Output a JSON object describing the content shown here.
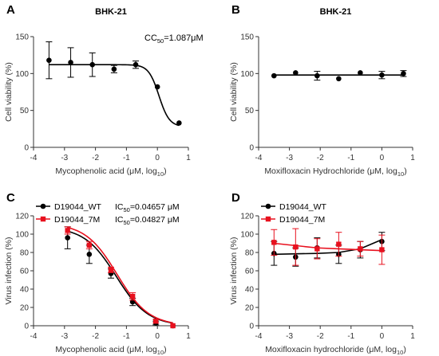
{
  "chart_data": [
    {
      "panel": "A",
      "type": "scatter",
      "title": "BHK-21",
      "xlabel": "Mycophenolic acid (μM, log",
      "xlabel_sub": "10",
      "ylabel": "Cell viability (%)",
      "xlim": [
        -4,
        1
      ],
      "ylim": [
        0,
        150
      ],
      "xticks": [
        -4,
        -3,
        -2,
        -1,
        0,
        1
      ],
      "yticks": [
        0,
        50,
        100,
        150
      ],
      "annotation": {
        "prefix": "CC",
        "sub": "50",
        "suffix": "=1.087μM"
      },
      "series": [
        {
          "color": "#000000",
          "marker": "circle",
          "x": [
            -3.5,
            -2.8,
            -2.1,
            -1.4,
            -0.7,
            0.0,
            0.7
          ],
          "y": [
            118,
            115,
            112,
            106,
            112,
            82,
            33
          ],
          "err": [
            25,
            20,
            16,
            5,
            5,
            0,
            0
          ],
          "fit": {
            "top": 112,
            "bottom": 28,
            "logEC50": 0.05,
            "hill": 2.6
          }
        }
      ]
    },
    {
      "panel": "B",
      "type": "scatter",
      "title": "BHK-21",
      "xlabel": "Moxifloxacin Hydrochloride (μM, log",
      "xlabel_sub": "10",
      "ylabel": "Cell viability (%)",
      "xlim": [
        -4,
        1
      ],
      "ylim": [
        0,
        150
      ],
      "xticks": [
        -4,
        -3,
        -2,
        -1,
        0,
        1
      ],
      "yticks": [
        0,
        50,
        100,
        150
      ],
      "series": [
        {
          "color": "#000000",
          "marker": "circle",
          "x": [
            -3.5,
            -2.8,
            -2.1,
            -1.4,
            -0.7,
            0.0,
            0.7
          ],
          "y": [
            97,
            101,
            97,
            93,
            101,
            98,
            100
          ],
          "err": [
            0,
            0,
            6,
            0,
            0,
            5,
            4
          ],
          "fit": {
            "constant": 98
          }
        }
      ]
    },
    {
      "panel": "C",
      "type": "scatter",
      "title": "",
      "xlabel": "Mycophenolic acid (μM, log",
      "xlabel_sub": "10",
      "ylabel": "Virus infection (%)",
      "xlim": [
        -4,
        1
      ],
      "ylim": [
        0,
        120
      ],
      "xticks": [
        -4,
        -3,
        -2,
        -1,
        0,
        1
      ],
      "yticks": [
        0,
        20,
        40,
        60,
        80,
        100,
        120
      ],
      "legend_position": "top-left",
      "series": [
        {
          "name": "D19044_WT",
          "legend_extra": {
            "prefix": "IC",
            "sub": "50",
            "suffix": "=0.04657 μM"
          },
          "color": "#000000",
          "marker": "circle",
          "x": [
            -2.9,
            -2.2,
            -1.5,
            -0.8,
            -0.05,
            0.5
          ],
          "y": [
            96,
            78,
            57,
            26,
            3,
            0
          ],
          "err": [
            12,
            10,
            5,
            4,
            2,
            0
          ],
          "fit": {
            "top": 108,
            "bottom": 0,
            "logEC50": -1.33,
            "hill": 0.85
          }
        },
        {
          "name": "D19044_7M",
          "legend_extra": {
            "prefix": "IC",
            "sub": "50",
            "suffix": "=0.04827 μM"
          },
          "color": "#e8101e",
          "marker": "square",
          "x": [
            -2.9,
            -2.2,
            -1.5,
            -0.8,
            -0.05,
            0.5
          ],
          "y": [
            104,
            88,
            61,
            32,
            5,
            0
          ],
          "err": [
            4,
            4,
            3,
            4,
            2,
            0
          ],
          "fit": {
            "top": 112,
            "bottom": 0,
            "logEC50": -1.3,
            "hill": 0.85
          }
        }
      ]
    },
    {
      "panel": "D",
      "type": "scatter",
      "title": "",
      "xlabel": "Moxifloxacin hydrochloride (μM, log",
      "xlabel_sub": "10",
      "ylabel": "Virus infection (%)",
      "xlim": [
        -4,
        1
      ],
      "ylim": [
        0,
        120
      ],
      "xticks": [
        -4,
        -3,
        -2,
        -1,
        0,
        1
      ],
      "yticks": [
        0,
        20,
        40,
        60,
        80,
        100,
        120
      ],
      "legend_position": "top-left",
      "series": [
        {
          "name": "D19044_WT",
          "color": "#000000",
          "marker": "circle",
          "x": [
            -3.5,
            -2.8,
            -2.1,
            -1.4,
            -0.7,
            0.0
          ],
          "y": [
            79,
            75,
            85,
            78,
            83,
            92
          ],
          "err": [
            13,
            10,
            11,
            10,
            9,
            10
          ],
          "fit": {
            "type": "poly",
            "points": [
              [
                -3.5,
                78
              ],
              [
                -2.1,
                79
              ],
              [
                -1.4,
                80
              ],
              [
                -0.7,
                84
              ],
              [
                0.0,
                94
              ]
            ]
          }
        },
        {
          "name": "D19044_7M",
          "color": "#e8101e",
          "marker": "square",
          "x": [
            -3.5,
            -2.8,
            -2.1,
            -1.4,
            -0.7,
            0.0
          ],
          "y": [
            91,
            86,
            84,
            89,
            84,
            83
          ],
          "err": [
            14,
            20,
            11,
            13,
            8,
            16
          ],
          "fit": {
            "type": "poly",
            "points": [
              [
                -3.5,
                90
              ],
              [
                -2.1,
                85
              ],
              [
                -1.4,
                84
              ],
              [
                -0.7,
                83
              ],
              [
                0.0,
                82
              ]
            ]
          }
        }
      ]
    }
  ]
}
